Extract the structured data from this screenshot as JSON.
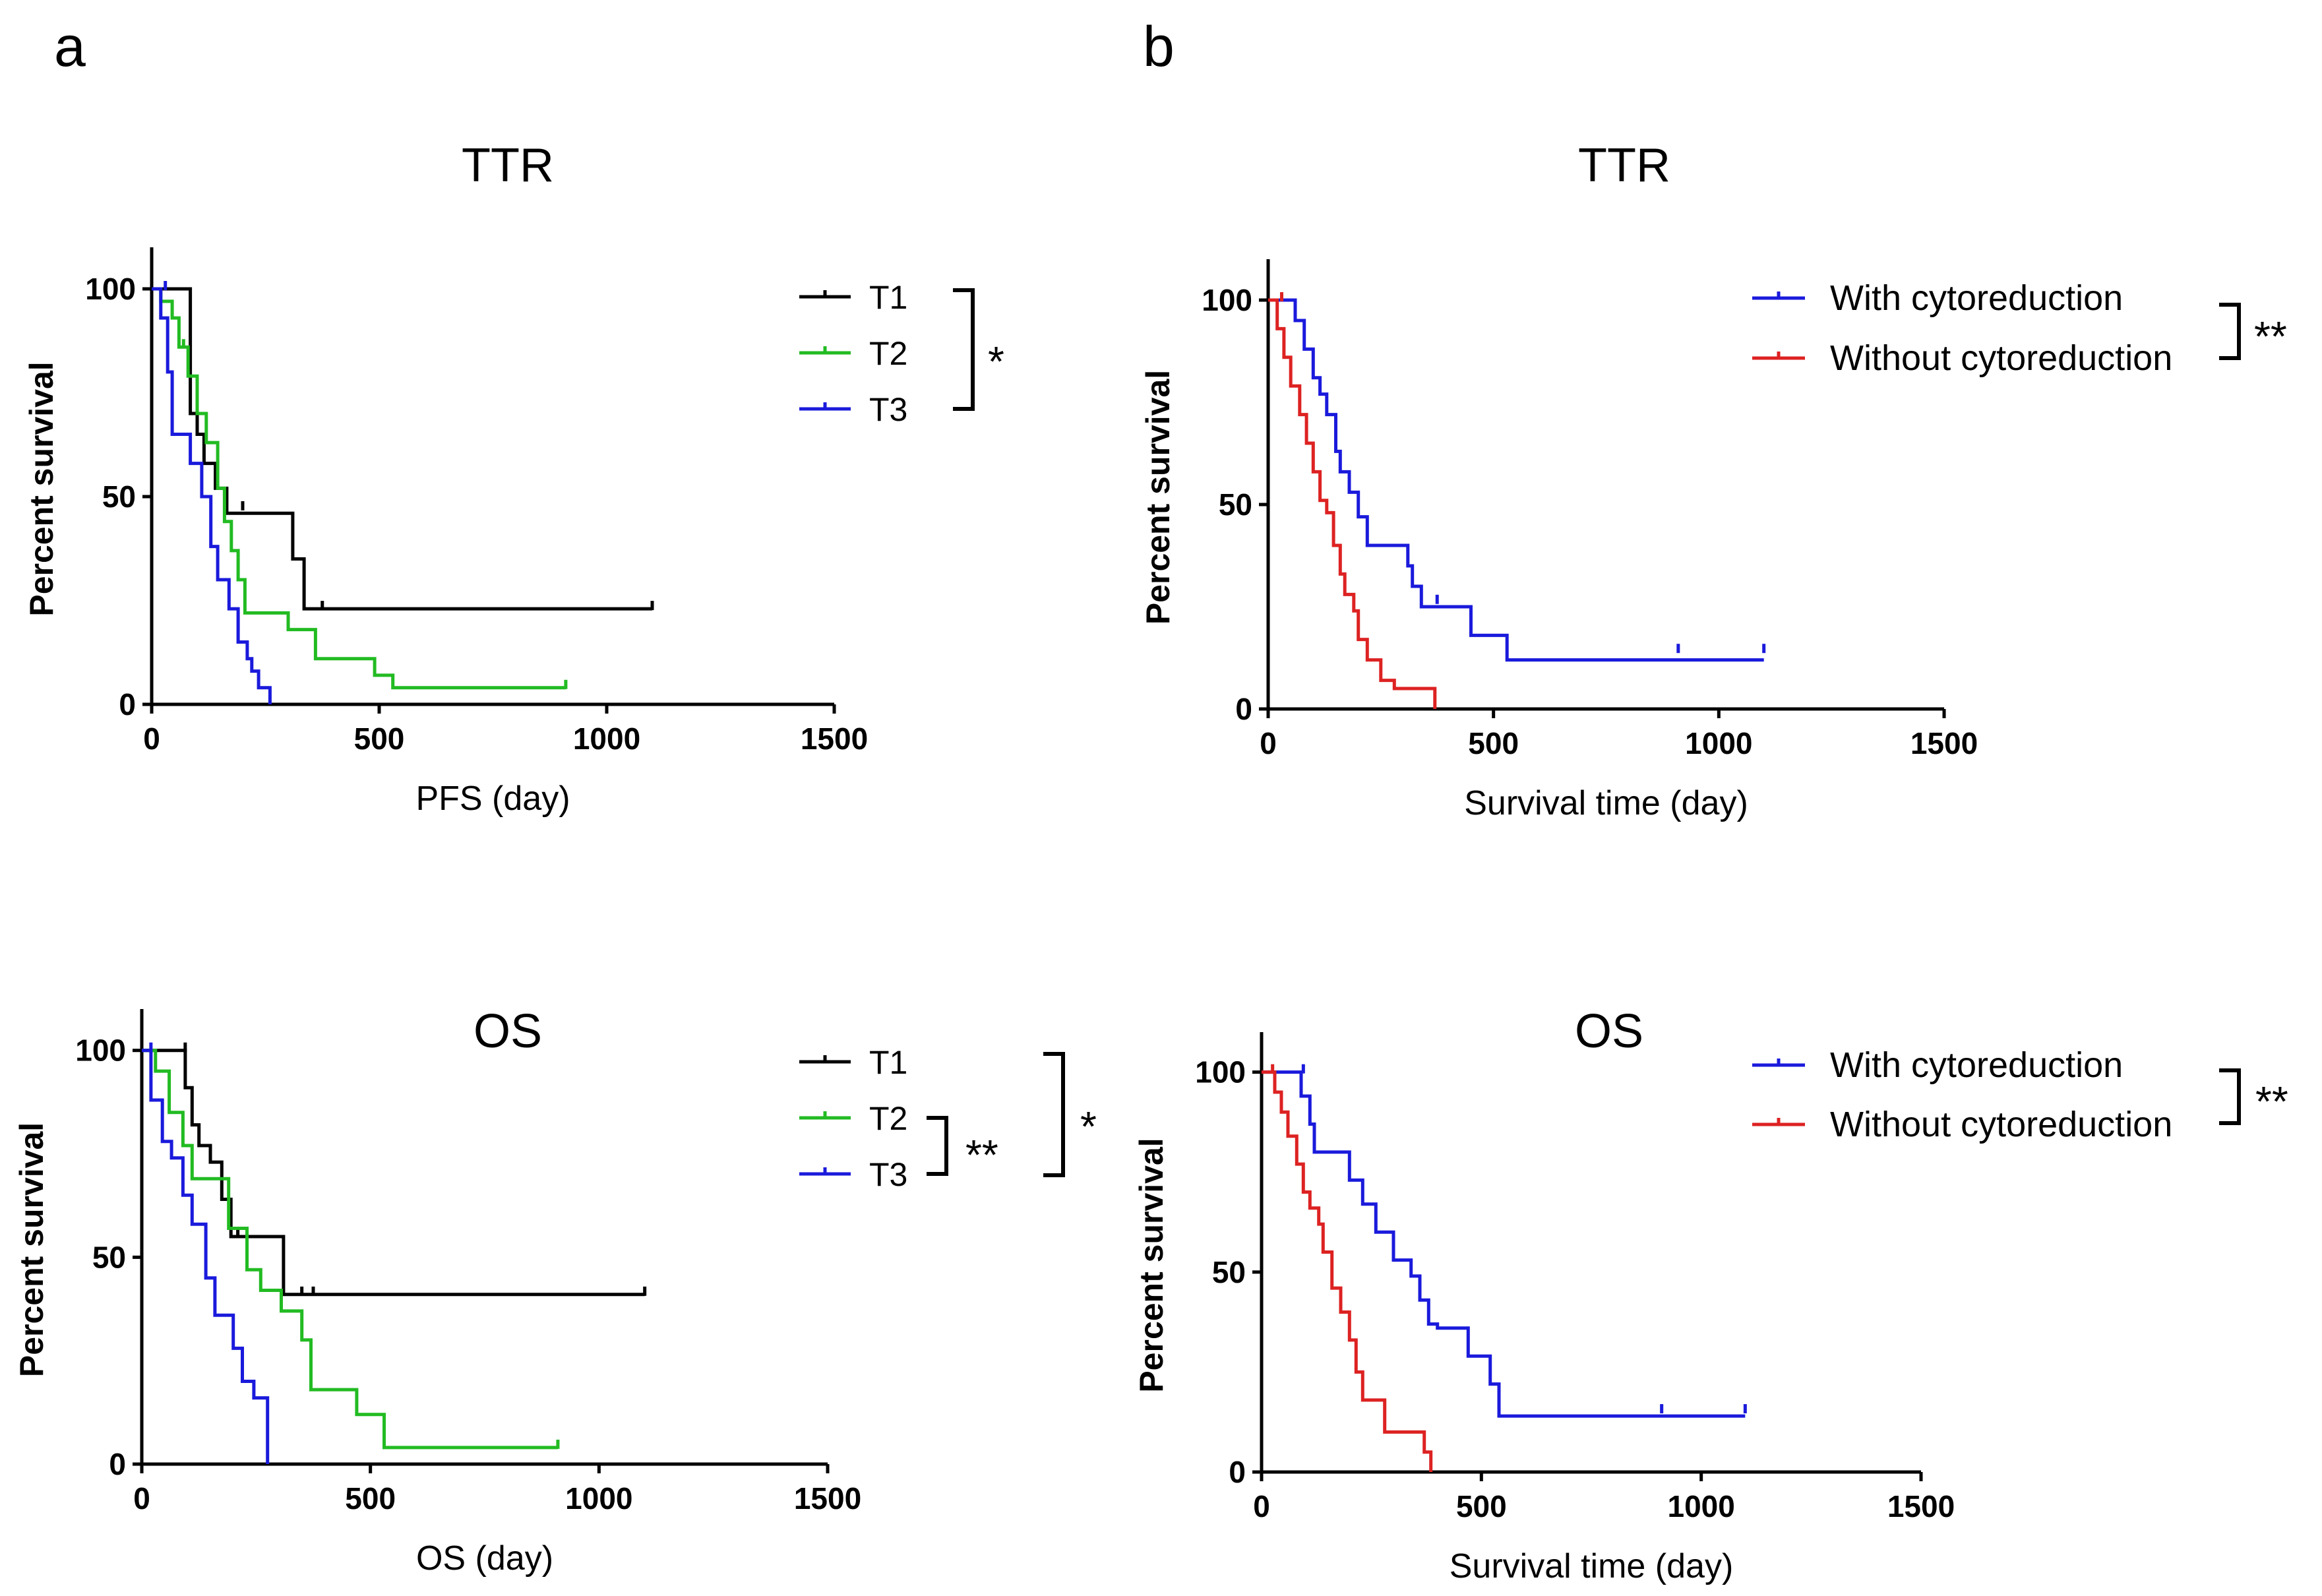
{
  "panels": [
    "a",
    "b"
  ],
  "chart_data": [
    {
      "type": "line",
      "panel": "a",
      "title": "TTR",
      "xlabel": "PFS (day)",
      "ylabel": "Percent survival",
      "xlim": [
        0,
        1500
      ],
      "ylim": [
        0,
        110
      ],
      "xticks": [
        0,
        500,
        1000,
        1500
      ],
      "yticks": [
        0,
        50,
        100
      ],
      "legend_position": "right",
      "series": [
        {
          "name": "T1",
          "color": "#000000",
          "x": [
            0,
            85,
            85,
            100,
            100,
            115,
            115,
            140,
            140,
            165,
            165,
            185,
            185,
            310,
            310,
            335,
            335,
            1100
          ],
          "y": [
            100,
            100,
            70,
            70,
            65,
            65,
            58,
            58,
            52,
            52,
            46,
            46,
            46,
            46,
            35,
            35,
            23,
            23
          ],
          "censored": [
            [
              200,
              47
            ],
            [
              375,
              23
            ],
            [
              1100,
              23
            ]
          ]
        },
        {
          "name": "T2",
          "color": "#22bb22",
          "x": [
            0,
            20,
            20,
            45,
            45,
            60,
            60,
            80,
            80,
            100,
            100,
            120,
            120,
            145,
            145,
            160,
            160,
            175,
            175,
            190,
            190,
            205,
            205,
            300,
            300,
            360,
            360,
            490,
            490,
            530,
            530,
            910
          ],
          "y": [
            100,
            100,
            97,
            97,
            93,
            93,
            86,
            86,
            79,
            79,
            70,
            70,
            63,
            63,
            52,
            52,
            44,
            44,
            37,
            37,
            30,
            30,
            22,
            22,
            18,
            18,
            11,
            11,
            7,
            7,
            4,
            4
          ],
          "censored": [
            [
              70,
              86
            ],
            [
              910,
              4
            ]
          ]
        },
        {
          "name": "T3",
          "color": "#1a1adc",
          "x": [
            0,
            20,
            20,
            35,
            35,
            45,
            45,
            85,
            85,
            110,
            110,
            130,
            130,
            145,
            145,
            170,
            170,
            190,
            190,
            210,
            210,
            220,
            220,
            235,
            235,
            260,
            260
          ],
          "y": [
            100,
            100,
            93,
            93,
            80,
            80,
            65,
            65,
            58,
            58,
            50,
            50,
            38,
            38,
            30,
            30,
            23,
            23,
            15,
            15,
            11,
            11,
            8,
            8,
            4,
            4,
            0
          ],
          "censored": [
            [
              30,
              100
            ]
          ]
        }
      ],
      "significance": [
        {
          "groups": [
            "T1",
            "T3"
          ],
          "label": "*"
        }
      ]
    },
    {
      "type": "line",
      "panel": "b",
      "title": "TTR",
      "xlabel": "Survival time (day)",
      "ylabel": "Percent survival",
      "xlim": [
        0,
        1500
      ],
      "ylim": [
        0,
        110
      ],
      "xticks": [
        0,
        500,
        1000,
        1500
      ],
      "yticks": [
        0,
        50,
        100
      ],
      "legend_position": "top-right",
      "series": [
        {
          "name": "With cytoreduction",
          "color": "#1a1adc",
          "x": [
            0,
            60,
            60,
            80,
            80,
            100,
            100,
            115,
            115,
            130,
            130,
            150,
            150,
            160,
            160,
            180,
            180,
            200,
            200,
            220,
            220,
            310,
            310,
            320,
            320,
            340,
            340,
            450,
            450,
            530,
            530,
            1100
          ],
          "y": [
            100,
            100,
            95,
            95,
            88,
            88,
            81,
            81,
            77,
            77,
            72,
            72,
            63,
            63,
            58,
            58,
            53,
            53,
            47,
            47,
            40,
            40,
            35,
            35,
            30,
            30,
            25,
            25,
            18,
            18,
            12,
            12
          ],
          "censored": [
            [
              375,
              26
            ],
            [
              910,
              14
            ],
            [
              1100,
              14
            ]
          ]
        },
        {
          "name": "Without cytoreduction",
          "color": "#dd2222",
          "x": [
            0,
            20,
            20,
            35,
            35,
            50,
            50,
            70,
            70,
            85,
            85,
            100,
            100,
            115,
            115,
            130,
            130,
            145,
            145,
            160,
            160,
            170,
            170,
            190,
            190,
            200,
            200,
            220,
            220,
            250,
            250,
            280,
            280,
            370,
            370
          ],
          "y": [
            100,
            100,
            93,
            93,
            86,
            86,
            79,
            79,
            72,
            72,
            65,
            65,
            58,
            58,
            51,
            51,
            48,
            48,
            40,
            40,
            33,
            33,
            28,
            28,
            24,
            24,
            17,
            17,
            12,
            12,
            7,
            7,
            5,
            5,
            0
          ],
          "censored": [
            [
              30,
              100
            ]
          ]
        }
      ],
      "significance": [
        {
          "groups": [
            "With cytoreduction",
            "Without cytoreduction"
          ],
          "label": "**"
        }
      ]
    },
    {
      "type": "line",
      "panel": "a",
      "title": "OS",
      "xlabel": "OS (day)",
      "ylabel": "Percent survival",
      "xlim": [
        0,
        1500
      ],
      "ylim": [
        0,
        110
      ],
      "xticks": [
        0,
        500,
        1000,
        1500
      ],
      "yticks": [
        0,
        50,
        100
      ],
      "legend_position": "right",
      "series": [
        {
          "name": "T1",
          "color": "#000000",
          "x": [
            0,
            95,
            95,
            110,
            110,
            125,
            125,
            150,
            150,
            175,
            175,
            195,
            195,
            310,
            310,
            1100
          ],
          "y": [
            100,
            100,
            91,
            91,
            82,
            82,
            77,
            77,
            73,
            73,
            64,
            64,
            55,
            55,
            41,
            41
          ],
          "censored": [
            [
              95,
              100
            ],
            [
              210,
              55
            ],
            [
              350,
              41
            ],
            [
              375,
              41
            ],
            [
              1100,
              41
            ]
          ]
        },
        {
          "name": "T2",
          "color": "#22bb22",
          "x": [
            0,
            30,
            30,
            60,
            60,
            90,
            90,
            110,
            110,
            190,
            190,
            230,
            230,
            260,
            260,
            305,
            305,
            350,
            350,
            370,
            370,
            470,
            470,
            530,
            530,
            910
          ],
          "y": [
            100,
            100,
            95,
            95,
            85,
            85,
            77,
            77,
            69,
            69,
            57,
            57,
            47,
            47,
            42,
            42,
            37,
            37,
            30,
            30,
            18,
            18,
            12,
            12,
            4,
            4
          ],
          "censored": [
            [
              910,
              4
            ]
          ]
        },
        {
          "name": "T3",
          "color": "#1a1adc",
          "x": [
            0,
            20,
            20,
            45,
            45,
            65,
            65,
            90,
            90,
            110,
            110,
            140,
            140,
            160,
            160,
            200,
            200,
            220,
            220,
            245,
            245,
            275,
            275
          ],
          "y": [
            100,
            100,
            88,
            88,
            78,
            78,
            74,
            74,
            65,
            65,
            58,
            58,
            45,
            45,
            36,
            36,
            28,
            28,
            20,
            20,
            16,
            16,
            0
          ],
          "censored": [
            [
              20,
              100
            ]
          ]
        }
      ],
      "significance": [
        {
          "groups": [
            "T2",
            "T3"
          ],
          "label": "**"
        },
        {
          "groups": [
            "T1",
            "T3"
          ],
          "label": "*"
        }
      ]
    },
    {
      "type": "line",
      "panel": "b",
      "title": "OS",
      "xlabel": "Survival time (day)",
      "ylabel": "Percent survival",
      "xlim": [
        0,
        1500
      ],
      "ylim": [
        0,
        110
      ],
      "xticks": [
        0,
        500,
        1000,
        1500
      ],
      "yticks": [
        0,
        50,
        100
      ],
      "legend_position": "top-right",
      "series": [
        {
          "name": "With cytoreduction",
          "color": "#1a1adc",
          "x": [
            0,
            90,
            90,
            110,
            110,
            120,
            120,
            200,
            200,
            230,
            230,
            260,
            260,
            300,
            300,
            340,
            340,
            360,
            360,
            380,
            380,
            400,
            400,
            470,
            470,
            520,
            520,
            540,
            540,
            1100
          ],
          "y": [
            100,
            100,
            94,
            94,
            87,
            87,
            80,
            80,
            73,
            73,
            67,
            67,
            60,
            60,
            53,
            53,
            49,
            49,
            43,
            43,
            37,
            37,
            36,
            36,
            29,
            29,
            22,
            22,
            14,
            14
          ],
          "censored": [
            [
              95,
              100
            ],
            [
              910,
              15
            ],
            [
              1100,
              15
            ]
          ]
        },
        {
          "name": "Without cytoreduction",
          "color": "#dd2222",
          "x": [
            0,
            30,
            30,
            45,
            45,
            60,
            60,
            80,
            80,
            95,
            95,
            110,
            110,
            130,
            130,
            140,
            140,
            160,
            160,
            180,
            180,
            200,
            200,
            215,
            215,
            230,
            230,
            280,
            280,
            370,
            370,
            385,
            385
          ],
          "y": [
            100,
            100,
            95,
            95,
            90,
            90,
            84,
            84,
            77,
            77,
            70,
            70,
            66,
            66,
            62,
            62,
            55,
            55,
            46,
            46,
            40,
            40,
            33,
            33,
            25,
            25,
            18,
            18,
            10,
            10,
            5,
            5,
            0
          ],
          "censored": [
            [
              25,
              100
            ]
          ]
        }
      ],
      "significance": [
        {
          "groups": [
            "With cytoreduction",
            "Without cytoreduction"
          ],
          "label": "**"
        }
      ]
    }
  ]
}
